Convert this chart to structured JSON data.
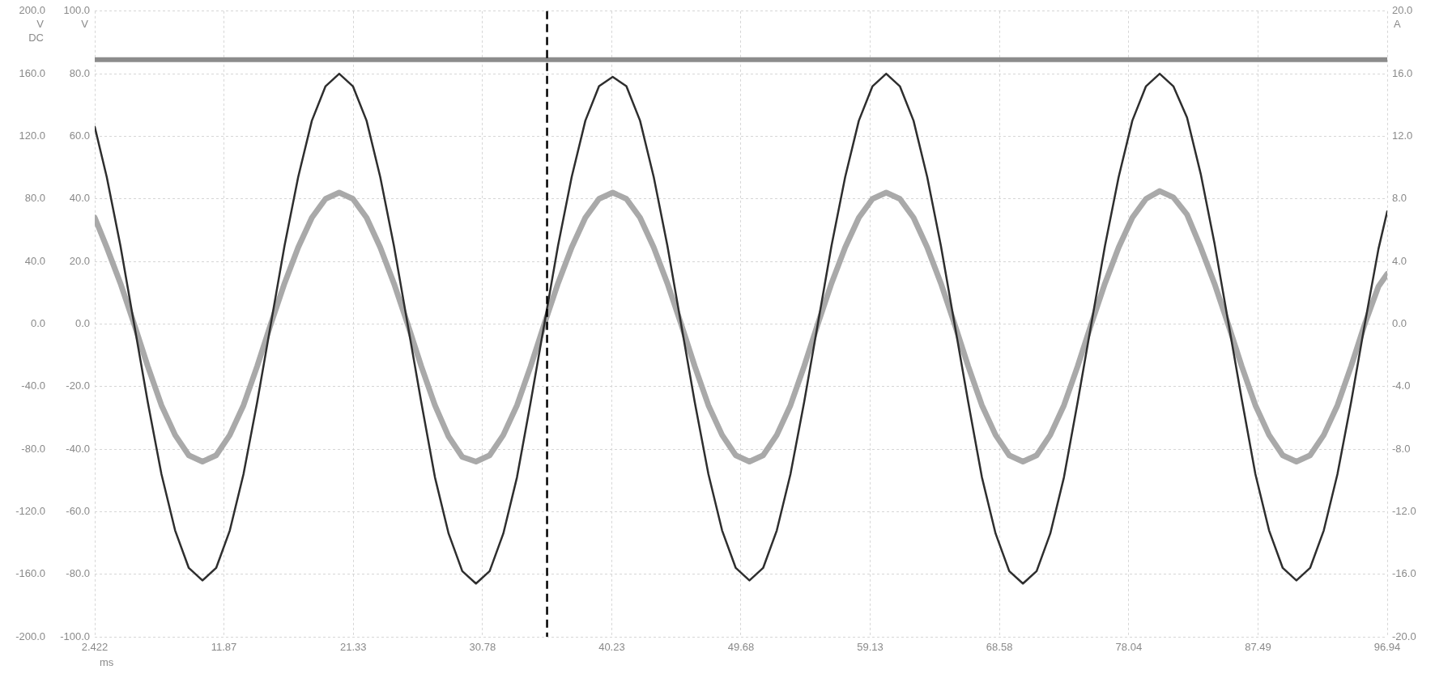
{
  "chart_data": {
    "type": "line",
    "xlabel": "ms",
    "ylabel": "V DC",
    "y3label": "V",
    "y2label": "A",
    "x": [
      2.422,
      3.3,
      4.3,
      5.3,
      6.3,
      7.3,
      8.3,
      9.3,
      10.3,
      11.3,
      12.3,
      13.3,
      14.3,
      15.3,
      16.3,
      17.3,
      18.3,
      19.3,
      20.3,
      21.3,
      22.3,
      23.3,
      24.3,
      25.3,
      26.3,
      27.3,
      28.3,
      29.3,
      30.3,
      31.3,
      32.3,
      33.3,
      34.3,
      35.3,
      36.3,
      37.3,
      38.3,
      39.3,
      40.3,
      41.3,
      42.3,
      43.3,
      44.3,
      45.3,
      46.3,
      47.3,
      48.3,
      49.3,
      50.3,
      51.3,
      52.3,
      53.3,
      54.3,
      55.3,
      56.3,
      57.3,
      58.3,
      59.3,
      60.3,
      61.3,
      62.3,
      63.3,
      64.3,
      65.3,
      66.3,
      67.3,
      68.3,
      69.3,
      70.3,
      71.3,
      72.3,
      73.3,
      74.3,
      75.3,
      76.3,
      77.3,
      78.3,
      79.3,
      80.3,
      81.3,
      82.3,
      83.3,
      84.3,
      85.3,
      86.3,
      87.3,
      88.3,
      89.3,
      90.3,
      91.3,
      92.3,
      93.3,
      94.3,
      95.3,
      96.3,
      96.94
    ],
    "xlim": [
      2.422,
      96.94
    ],
    "xticks": [
      2.422,
      11.87,
      21.33,
      30.78,
      40.23,
      49.68,
      59.13,
      68.58,
      78.04,
      87.49,
      96.94
    ],
    "ylim": [
      -200,
      200
    ],
    "yticks": [
      {
        "value": -200,
        "label": "-200.0"
      },
      {
        "value": -160,
        "label": "-160.0"
      },
      {
        "value": -120,
        "label": "-120.0"
      },
      {
        "value": -80,
        "label": "-80.0"
      },
      {
        "value": -40,
        "label": "-40.0"
      },
      {
        "value": 0,
        "label": "0.0"
      },
      {
        "value": 40,
        "label": "40.0"
      },
      {
        "value": 80,
        "label": "80.0"
      },
      {
        "value": 120,
        "label": "120.0"
      },
      {
        "value": 160,
        "label": "160.0"
      },
      {
        "value": 200,
        "label": "200.0"
      }
    ],
    "y3lim": [
      -100,
      100
    ],
    "y3ticks": [
      {
        "value": -100,
        "label": "-100.0"
      },
      {
        "value": -80,
        "label": "-80.0"
      },
      {
        "value": -60,
        "label": "-60.0"
      },
      {
        "value": -40,
        "label": "-40.0"
      },
      {
        "value": -20,
        "label": "-20.0"
      },
      {
        "value": 0,
        "label": "0.0"
      },
      {
        "value": 20,
        "label": "20.0"
      },
      {
        "value": 40,
        "label": "40.0"
      },
      {
        "value": 60,
        "label": "60.0"
      },
      {
        "value": 80,
        "label": "80.0"
      },
      {
        "value": 100,
        "label": "100.0"
      }
    ],
    "y2lim": [
      -20,
      20
    ],
    "y2ticks": [
      {
        "value": -20,
        "label": "-20.0"
      },
      {
        "value": -16,
        "label": "-16.0"
      },
      {
        "value": -12,
        "label": "-12.0"
      },
      {
        "value": -8,
        "label": "-8.0"
      },
      {
        "value": -4,
        "label": "-4.0"
      },
      {
        "value": 0,
        "label": "0.0"
      },
      {
        "value": 4,
        "label": "4.0"
      },
      {
        "value": 8,
        "label": "8.0"
      },
      {
        "value": 12,
        "label": "12.0"
      },
      {
        "value": 16,
        "label": "16.0"
      },
      {
        "value": 20,
        "label": "20.0"
      }
    ],
    "grid": true,
    "ref_lines": [
      {
        "axis": "x",
        "value": 35.5,
        "color": "#000000",
        "line_style": "dashed"
      }
    ],
    "series": [
      {
        "color": "#8c8c8c",
        "x": [
          2.422,
          96.94
        ],
        "values": [
          169,
          169
        ]
      },
      {
        "color": "#a9a9a9",
        "axis": "y2",
        "values": [
          6.8,
          4.9,
          2.6,
          0,
          -2.7,
          -5.2,
          -7.1,
          -8.4,
          -8.8,
          -8.4,
          -7.1,
          -5.2,
          -2.7,
          0,
          2.6,
          4.9,
          6.8,
          8.0,
          8.4,
          8.0,
          6.8,
          4.9,
          2.6,
          0,
          -2.7,
          -5.2,
          -7.2,
          -8.5,
          -8.8,
          -8.4,
          -7.1,
          -5.2,
          -2.7,
          0,
          2.6,
          4.9,
          6.8,
          8.0,
          8.4,
          8.0,
          6.8,
          4.9,
          2.6,
          0,
          -2.7,
          -5.2,
          -7.1,
          -8.4,
          -8.8,
          -8.4,
          -7.1,
          -5.2,
          -2.7,
          0,
          2.6,
          4.9,
          6.8,
          8.0,
          8.4,
          8.0,
          6.8,
          4.9,
          2.6,
          0,
          -2.7,
          -5.2,
          -7.1,
          -8.4,
          -8.8,
          -8.4,
          -7.1,
          -5.2,
          -2.7,
          0,
          2.6,
          4.9,
          6.8,
          8.0,
          8.5,
          8.1,
          7.0,
          4.9,
          2.6,
          0,
          -2.7,
          -5.2,
          -7.1,
          -8.4,
          -8.8,
          -8.4,
          -7.1,
          -5.2,
          -2.7,
          0,
          2.4,
          3.2
        ]
      },
      {
        "color": "#2e2e2e",
        "axis": "y3",
        "values": [
          63,
          47,
          25,
          0,
          -25,
          -48,
          -66,
          -78,
          -82,
          -78,
          -66,
          -48,
          -25,
          0,
          25,
          47,
          65,
          76,
          80,
          76,
          65,
          47,
          25,
          0,
          -25,
          -49,
          -67,
          -79,
          -83,
          -79,
          -67,
          -49,
          -25,
          0,
          25,
          47,
          65,
          76,
          79,
          76,
          65,
          47,
          25,
          0,
          -25,
          -48,
          -66,
          -78,
          -82,
          -78,
          -66,
          -48,
          -25,
          0,
          25,
          47,
          65,
          76,
          80,
          76,
          65,
          47,
          25,
          0,
          -25,
          -49,
          -67,
          -79,
          -83,
          -79,
          -67,
          -49,
          -25,
          0,
          25,
          47,
          65,
          76,
          80,
          76,
          66,
          48,
          26,
          1,
          -24,
          -48,
          -66,
          -78,
          -82,
          -78,
          -66,
          -48,
          -25,
          0,
          24,
          36
        ]
      }
    ]
  }
}
